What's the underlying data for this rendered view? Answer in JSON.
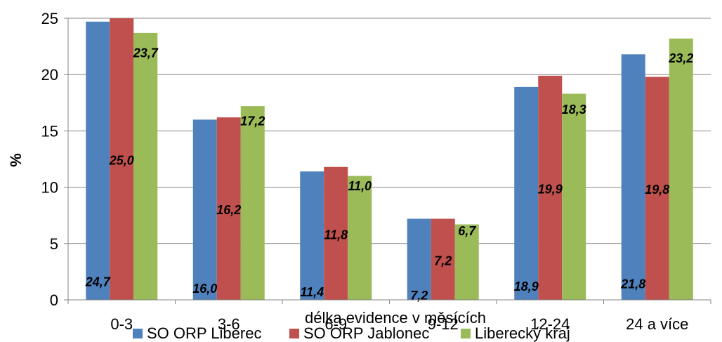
{
  "chart_data": {
    "type": "bar",
    "title": "",
    "xlabel": "délka evidence v měsících",
    "ylabel": "%",
    "ylim": [
      0,
      25
    ],
    "yticks": [
      0,
      5,
      10,
      15,
      20,
      25
    ],
    "grid": true,
    "legend_position": "bottom",
    "categories": [
      "0-3",
      "3-6",
      "6-9",
      "9-12",
      "12-24",
      "24 a více"
    ],
    "series": [
      {
        "name": "SO ORP Liberec",
        "color": "#4F81BD",
        "values": [
          24.7,
          16.0,
          11.4,
          7.2,
          18.9,
          21.8
        ],
        "labels": [
          "24,7",
          "16,0",
          "11,4",
          "7,2",
          "18,9",
          "21,8"
        ]
      },
      {
        "name": "SO ORP Jablonec",
        "color": "#C0504D",
        "values": [
          25.0,
          16.2,
          11.8,
          7.2,
          19.9,
          19.8
        ],
        "labels": [
          "25,0",
          "16,2",
          "11,8",
          "7,2",
          "19,9",
          "19,8"
        ]
      },
      {
        "name": "Liberecký kraj",
        "color": "#9BBB59",
        "values": [
          23.7,
          17.2,
          11.0,
          6.7,
          18.3,
          23.2
        ],
        "labels": [
          "23,7",
          "17,2",
          "11,0",
          "6,7",
          "18,3",
          "23,2"
        ]
      }
    ]
  }
}
